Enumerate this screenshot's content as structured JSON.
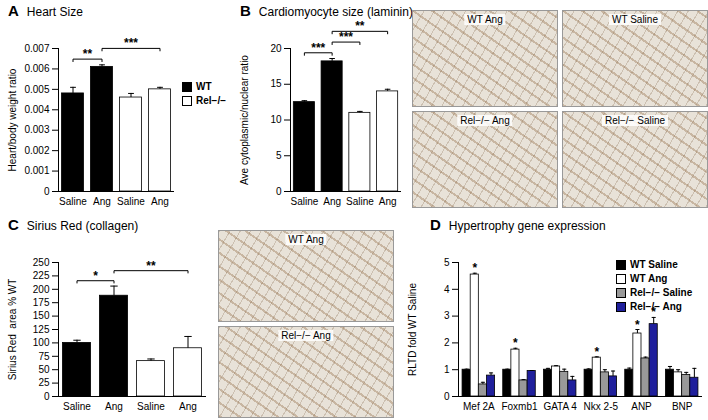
{
  "chart_data": [
    {
      "panel": "A",
      "type": "bar",
      "title": "Heart Size",
      "y_label": "Heart/body weight ratio",
      "categories": [
        "Saline",
        "Ang",
        "Saline",
        "Ang"
      ],
      "series": [
        {
          "name": "WT",
          "color": "#000000",
          "values": [
            0.0048,
            0.0061,
            null,
            null
          ],
          "errors": [
            0.0003,
            0.0001,
            null,
            null
          ]
        },
        {
          "name": "Rel−/−",
          "color": "#ffffff",
          "values": [
            null,
            null,
            0.0046,
            0.005
          ],
          "errors": [
            null,
            null,
            0.0002,
            0.0001
          ]
        }
      ],
      "ylim": [
        0,
        0.007
      ],
      "yticks": [
        0,
        0.001,
        0.002,
        0.003,
        0.004,
        0.005,
        0.006,
        0.007
      ],
      "legend": "right",
      "annotations": [
        {
          "text": "**",
          "from": 0,
          "to": 1
        },
        {
          "text": "***",
          "from": 1,
          "to": 3
        }
      ]
    },
    {
      "panel": "B",
      "type": "bar",
      "title": "Cardiomyocyte size (laminin)",
      "y_label": "Ave cytoplasmic/nuclear ratio",
      "categories": [
        "Saline",
        "Ang",
        "Saline",
        "Ang"
      ],
      "series": [
        {
          "name": "WT",
          "color": "#000000",
          "values": [
            12.5,
            18.2,
            null,
            null
          ],
          "errors": [
            0.2,
            0.4,
            null,
            null
          ]
        },
        {
          "name": "Rel−/−",
          "color": "#ffffff",
          "values": [
            null,
            null,
            11.0,
            14.0
          ],
          "errors": [
            null,
            null,
            0.2,
            0.3
          ]
        }
      ],
      "ylim": [
        0,
        20
      ],
      "yticks": [
        0,
        5,
        10,
        15,
        20
      ],
      "annotations": [
        {
          "text": "***",
          "from": 0,
          "to": 1
        },
        {
          "text": "***",
          "from": 1,
          "to": 2
        },
        {
          "text": "**",
          "from": 1,
          "to": 3
        }
      ],
      "images": [
        "WT Ang",
        "WT Saline",
        "Rel−/− Ang",
        "Rel−/− Saline"
      ]
    },
    {
      "panel": "C",
      "type": "bar",
      "title": "Sirius Red (collagen)",
      "y_label": "Sirius Red  area % WT",
      "categories": [
        "Saline",
        "Ang",
        "Saline",
        "Ang"
      ],
      "series": [
        {
          "name": "WT",
          "color": "#000000",
          "values": [
            100,
            188,
            null,
            null
          ],
          "errors": [
            5,
            18,
            null,
            null
          ]
        },
        {
          "name": "Rel−/−",
          "color": "#ffffff",
          "values": [
            null,
            null,
            66,
            90
          ],
          "errors": [
            null,
            null,
            4,
            22
          ]
        }
      ],
      "ylim": [
        0,
        250
      ],
      "yticks": [
        0,
        25,
        50,
        75,
        100,
        125,
        150,
        175,
        200,
        225,
        250
      ],
      "annotations": [
        {
          "text": "*",
          "from": 0,
          "to": 1
        },
        {
          "text": "**",
          "from": 1,
          "to": 3
        }
      ],
      "images": [
        "WT Ang",
        "Rel−/− Ang"
      ]
    },
    {
      "panel": "D",
      "type": "bar",
      "title": "Hypertrophy gene expression",
      "y_label": "RLTD fold WT Saline",
      "categories": [
        "Mef 2A",
        "Foxmb1",
        "GATA 4",
        "Nkx 2-5",
        "ANP",
        "BNP"
      ],
      "series": [
        {
          "name": "WT Saline",
          "color": "#000000",
          "values": [
            1,
            1,
            1,
            1,
            1,
            1
          ],
          "errors": [
            0.02,
            0.02,
            0.05,
            0.03,
            0.06,
            0.12
          ]
        },
        {
          "name": "WT Ang",
          "color": "#ffffff",
          "values": [
            4.55,
            1.75,
            1.12,
            1.45,
            2.35,
            0.9
          ],
          "errors": [
            0.05,
            0.05,
            0.03,
            0.03,
            0.15,
            0.1
          ]
        },
        {
          "name": "Rel−/− Saline",
          "color": "#999999",
          "values": [
            0.45,
            0.6,
            0.92,
            0.9,
            1.42,
            0.8
          ],
          "errors": [
            0.08,
            0.03,
            0.1,
            0.1,
            0.05,
            0.1
          ]
        },
        {
          "name": "Rel−/− Ang",
          "color": "#1f1f9c",
          "values": [
            0.78,
            0.95,
            0.6,
            0.75,
            2.7,
            0.7
          ],
          "errors": [
            0.1,
            0.02,
            0.15,
            0.2,
            0.25,
            0.35
          ]
        }
      ],
      "ylim": [
        0,
        5
      ],
      "yticks": [
        0,
        1,
        2,
        3,
        4,
        5
      ],
      "legend": "top-right",
      "annotations": [
        {
          "text": "*",
          "category": 0,
          "series": "WT Ang"
        },
        {
          "text": "*",
          "category": 1,
          "series": "WT Ang"
        },
        {
          "text": "*",
          "category": 3,
          "series": "WT Ang"
        },
        {
          "text": "*",
          "category": 4,
          "series": "WT Ang"
        },
        {
          "text": "*",
          "category": 4,
          "series": "Rel−/− Ang"
        }
      ]
    }
  ]
}
